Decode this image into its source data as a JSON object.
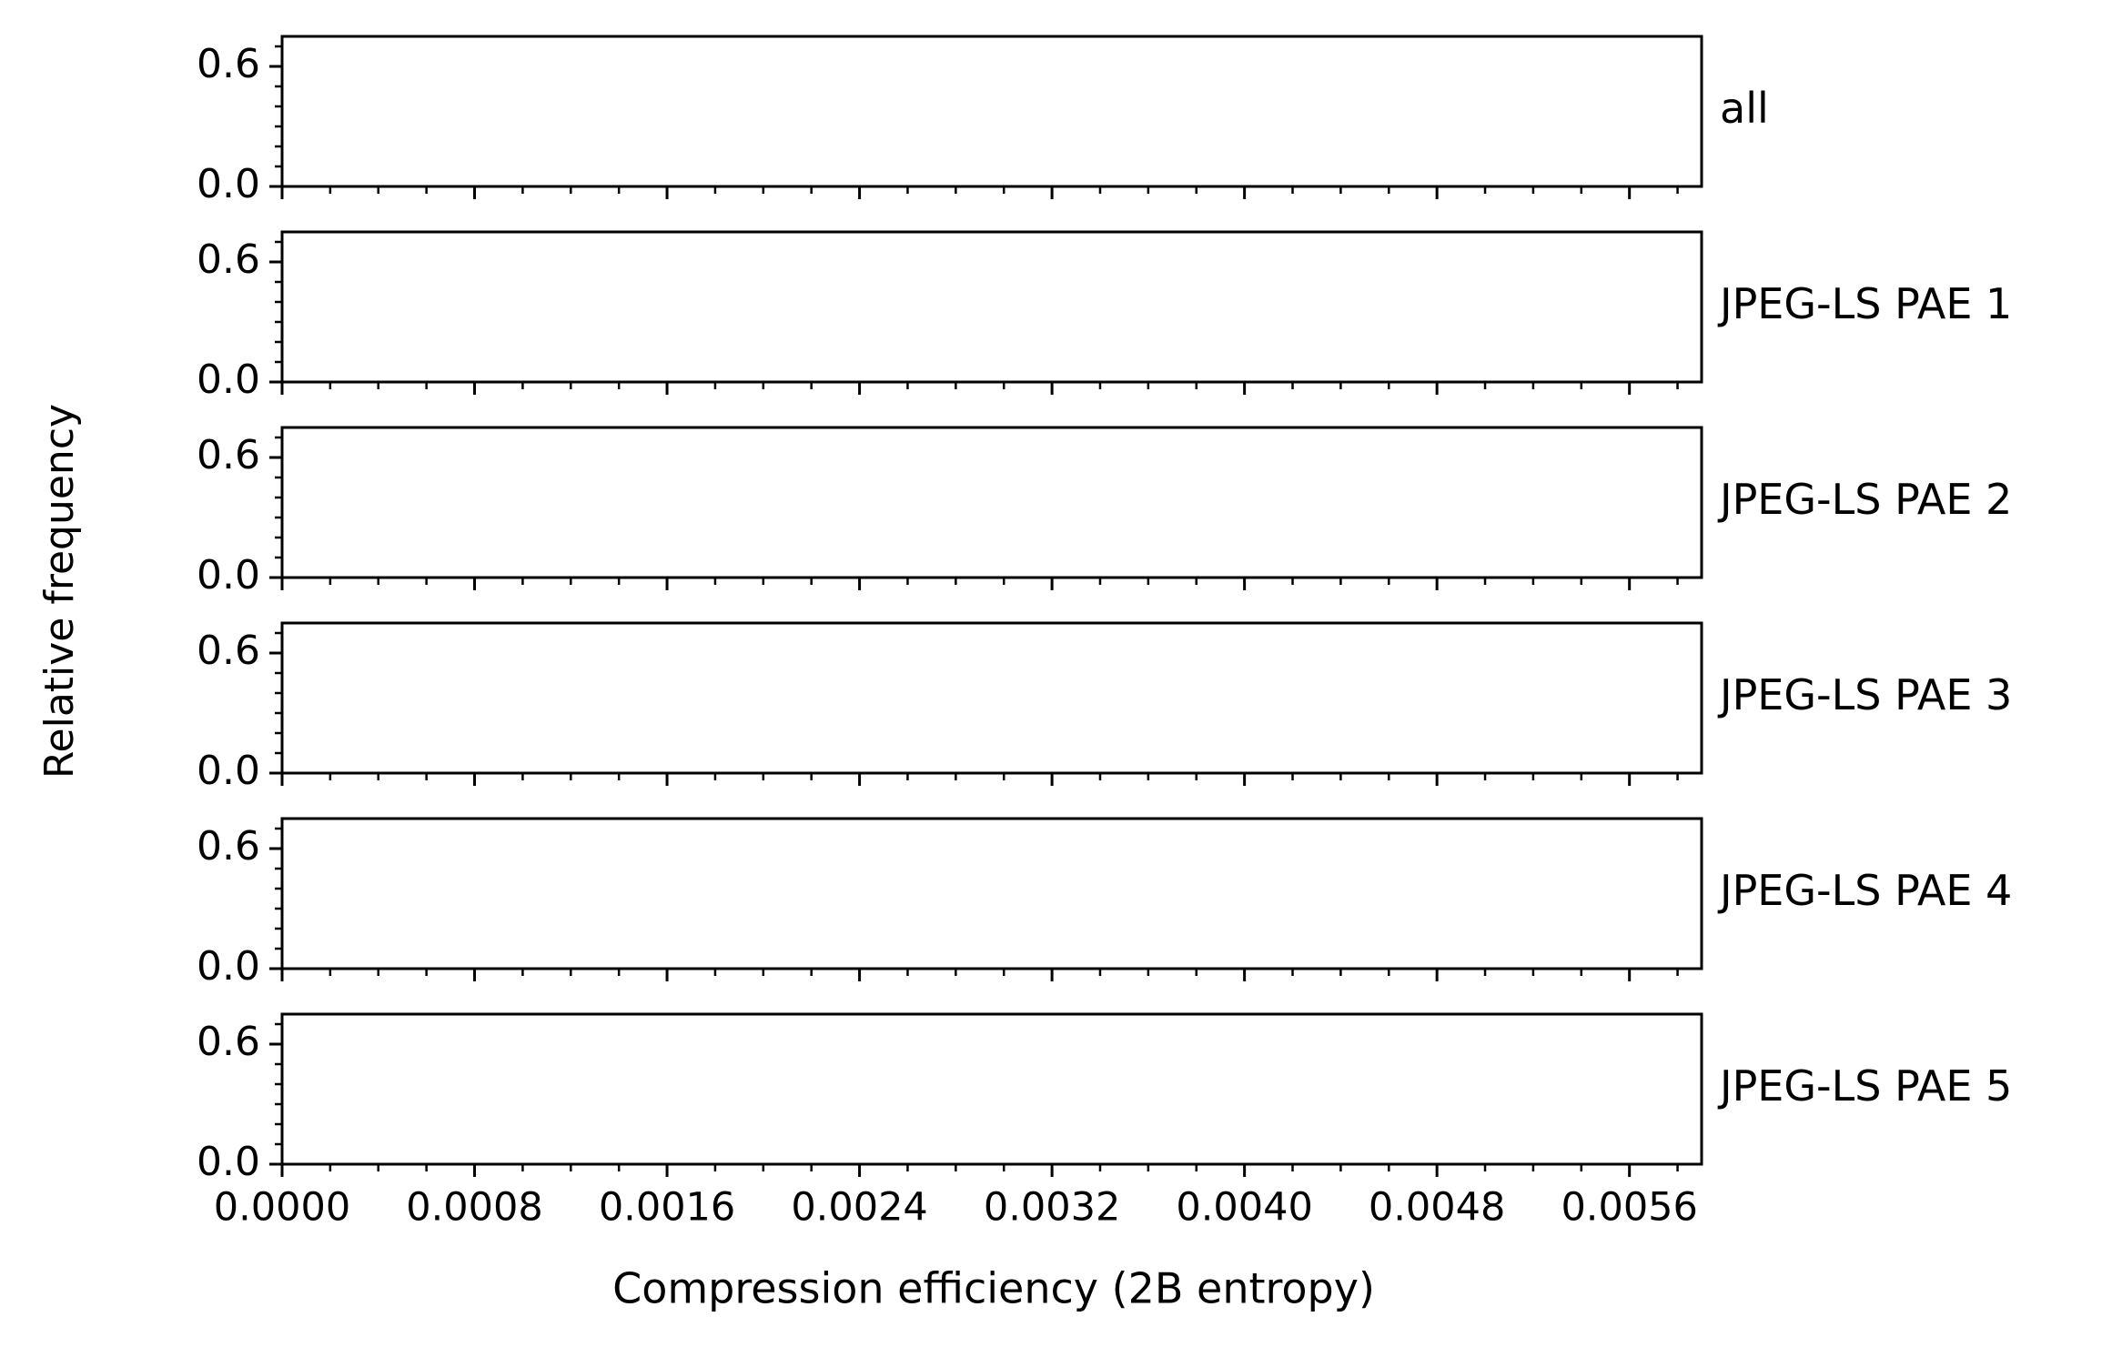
{
  "chart_data": {
    "type": "bar",
    "layout": "small-multiples, 6 panels stacked vertically, shared x axis",
    "xlabel": "Compression efficiency (2B entropy)",
    "ylabel": "Relative frequency",
    "xlim": [
      0.0,
      0.0059
    ],
    "x_ticks": [
      0.0,
      0.0008,
      0.0016,
      0.0024,
      0.0032,
      0.004,
      0.0048,
      0.0056
    ],
    "x_tick_labels": [
      "0.0000",
      "0.0008",
      "0.0016",
      "0.0024",
      "0.0032",
      "0.0040",
      "0.0048",
      "0.0056"
    ],
    "x_minor_step": 0.0002,
    "ylim": [
      0.0,
      0.75
    ],
    "y_ticks": [
      0.0,
      0.6
    ],
    "y_tick_labels": [
      "0.0",
      "0.6"
    ],
    "y_minor_step": 0.1,
    "grid": false,
    "panels": [
      {
        "label": "all",
        "values": []
      },
      {
        "label": "JPEG-LS PAE 1",
        "values": []
      },
      {
        "label": "JPEG-LS PAE 2",
        "values": []
      },
      {
        "label": "JPEG-LS PAE 3",
        "values": []
      },
      {
        "label": "JPEG-LS PAE 4",
        "values": []
      },
      {
        "label": "JPEG-LS PAE 5",
        "values": []
      }
    ]
  }
}
